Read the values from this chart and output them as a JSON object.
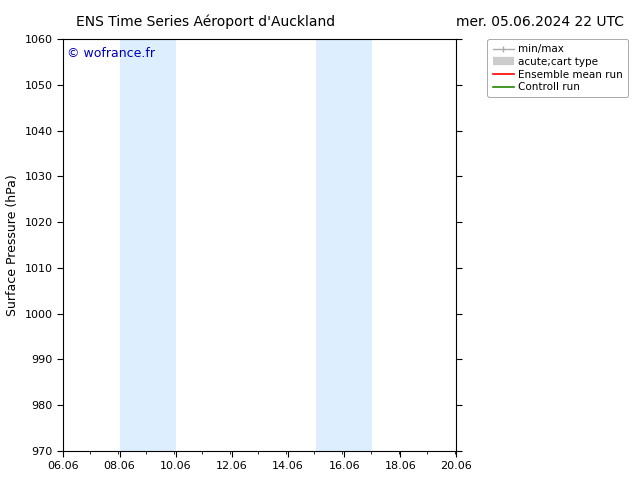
{
  "title_left": "ENS Time Series Aéroport d'Auckland",
  "title_right": "mer. 05.06.2024 22 UTC",
  "ylabel": "Surface Pressure (hPa)",
  "ylim": [
    970,
    1060
  ],
  "yticks": [
    970,
    980,
    990,
    1000,
    1010,
    1020,
    1030,
    1040,
    1050,
    1060
  ],
  "xtick_vals": [
    6.06,
    8.06,
    10.06,
    12.06,
    14.06,
    16.06,
    18.06,
    20.06
  ],
  "xticklabels": [
    "06.06",
    "08.06",
    "10.06",
    "12.06",
    "14.06",
    "16.06",
    "18.06",
    "20.06"
  ],
  "xlim_start": 6.06,
  "xlim_end": 20.06,
  "shaded_bands": [
    {
      "xmin": 8.06,
      "xmax": 10.06
    },
    {
      "xmin": 15.06,
      "xmax": 17.06
    }
  ],
  "shaded_color": "#ddeeff",
  "background_color": "#ffffff",
  "watermark_text": "© wofrance.fr",
  "watermark_color": "#0000bb",
  "legend_labels": [
    "min/max",
    "acute;cart type",
    "Ensemble mean run",
    "Controll run"
  ],
  "legend_colors": [
    "#aaaaaa",
    "#cccccc",
    "#ff0000",
    "#228800"
  ],
  "title_fontsize": 10,
  "tick_fontsize": 8,
  "ylabel_fontsize": 9,
  "watermark_fontsize": 9,
  "legend_fontsize": 7.5
}
